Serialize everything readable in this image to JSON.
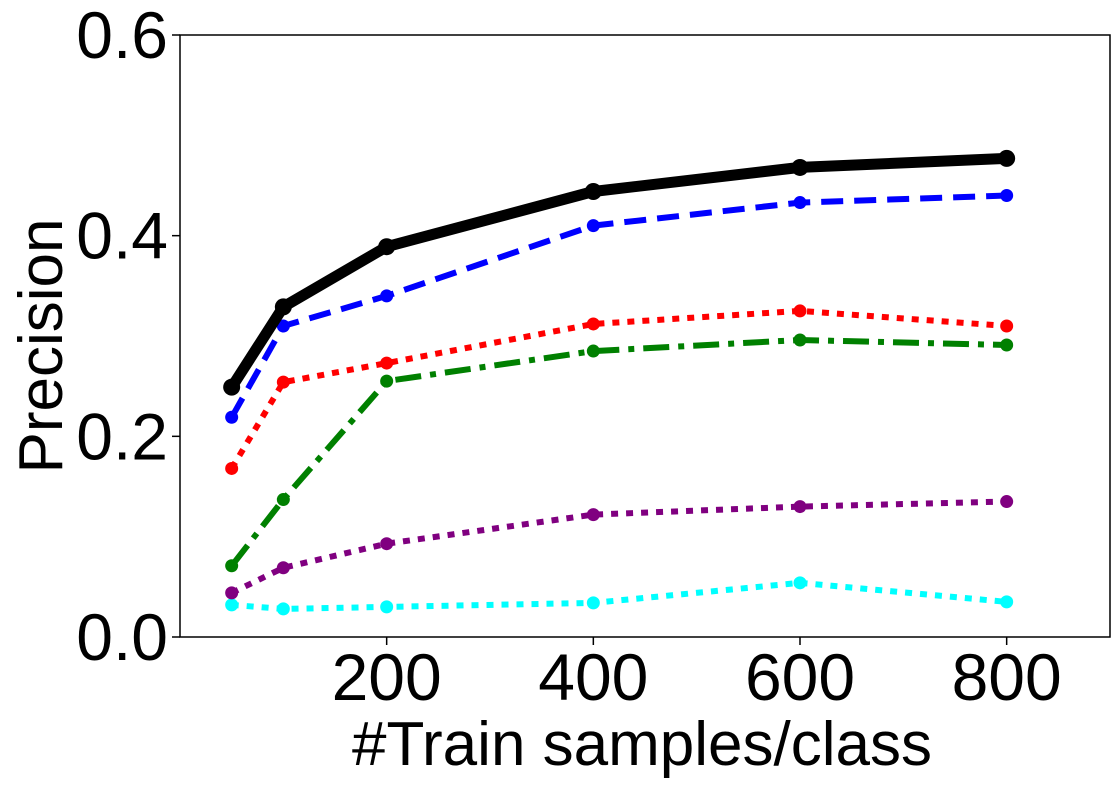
{
  "chart_data": {
    "type": "line",
    "title": "",
    "xlabel": "#Train samples/class",
    "ylabel": "Precision",
    "xlim": [
      0,
      900
    ],
    "ylim": [
      0.0,
      0.6
    ],
    "xticks": [
      200,
      400,
      600,
      800
    ],
    "xtick_labels": [
      "200",
      "400",
      "600",
      "800"
    ],
    "yticks": [
      0.0,
      0.2,
      0.4,
      0.6
    ],
    "ytick_labels": [
      "0.0",
      "0.2",
      "0.4",
      "0.6"
    ],
    "grid": false,
    "legend": false,
    "x": [
      50,
      100,
      200,
      400,
      600,
      800
    ],
    "series": [
      {
        "color": "#000000",
        "line_style": "solid",
        "values": [
          0.249,
          0.329,
          0.389,
          0.444,
          0.468,
          0.477
        ]
      },
      {
        "color": "#0000ff",
        "line_style": "dashed",
        "values": [
          0.219,
          0.31,
          0.34,
          0.41,
          0.433,
          0.44
        ]
      },
      {
        "color": "#ff0000",
        "line_style": "dotted",
        "values": [
          0.168,
          0.254,
          0.273,
          0.312,
          0.325,
          0.31
        ]
      },
      {
        "color": "#008000",
        "line_style": "dashdot",
        "values": [
          0.071,
          0.137,
          0.255,
          0.285,
          0.296,
          0.291
        ]
      },
      {
        "color": "#800080",
        "line_style": "dotted",
        "values": [
          0.044,
          0.069,
          0.093,
          0.122,
          0.13,
          0.135
        ]
      },
      {
        "color": "#00ffff",
        "line_style": "dotted",
        "values": [
          0.032,
          0.028,
          0.03,
          0.034,
          0.054,
          0.035
        ]
      }
    ]
  }
}
